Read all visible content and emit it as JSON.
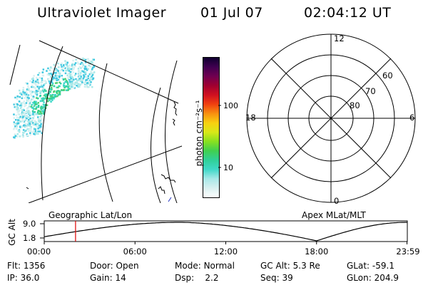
{
  "header": {
    "instrument": "Ultraviolet Imager",
    "date": "01 Jul 07",
    "time": "02:04:12 UT"
  },
  "colorbar": {
    "unit_label": "photon cm⁻²s⁻¹",
    "ticks": [
      {
        "label": "100",
        "value": 100
      },
      {
        "label": "10",
        "value": 10
      }
    ],
    "range": [
      3,
      300
    ],
    "colors": [
      "#ffffff",
      "#d8f0f0",
      "#a8e8e8",
      "#40d8c8",
      "#30d098",
      "#40d050",
      "#88e020",
      "#d8e818",
      "#f8d010",
      "#f89010",
      "#f04010",
      "#d01020",
      "#a00030",
      "#700050",
      "#400050",
      "#100030"
    ]
  },
  "geo_map": {
    "label": "Geographic Lat/Lon"
  },
  "polar_plot": {
    "label": "Apex MLat/MLT",
    "mlt_labels": {
      "top": "12",
      "left": "18",
      "right": "6",
      "bottom": "0"
    },
    "lat_labels": [
      "60",
      "70",
      "80"
    ]
  },
  "orbit_plot": {
    "y_axis_label": "GC Alt",
    "y_ticks": [
      "9.0",
      "1.8"
    ],
    "x_ticks": [
      "00:00",
      "06:00",
      "12:00",
      "18:00",
      "23:59"
    ],
    "current_time_marker_hour": 2.07,
    "marker_color": "#dd0000"
  },
  "status": {
    "flt": {
      "label": "Flt:",
      "value": "1356"
    },
    "ip": {
      "label": "IP:",
      "value": "36.0"
    },
    "door": {
      "label": "Door:",
      "value": "Open"
    },
    "gain": {
      "label": "Gain:",
      "value": "14"
    },
    "mode": {
      "label": "Mode:",
      "value": "Normal"
    },
    "dsp": {
      "label": "Dsp:",
      "value": "2.2"
    },
    "gc_alt": {
      "label": "GC Alt:",
      "value": "5.3 Re"
    },
    "seq": {
      "label": "Seq:",
      "value": "39"
    },
    "glat": {
      "label": "GLat:",
      "value": "-59.1"
    },
    "glon": {
      "label": "GLon:",
      "value": "204.9"
    }
  }
}
